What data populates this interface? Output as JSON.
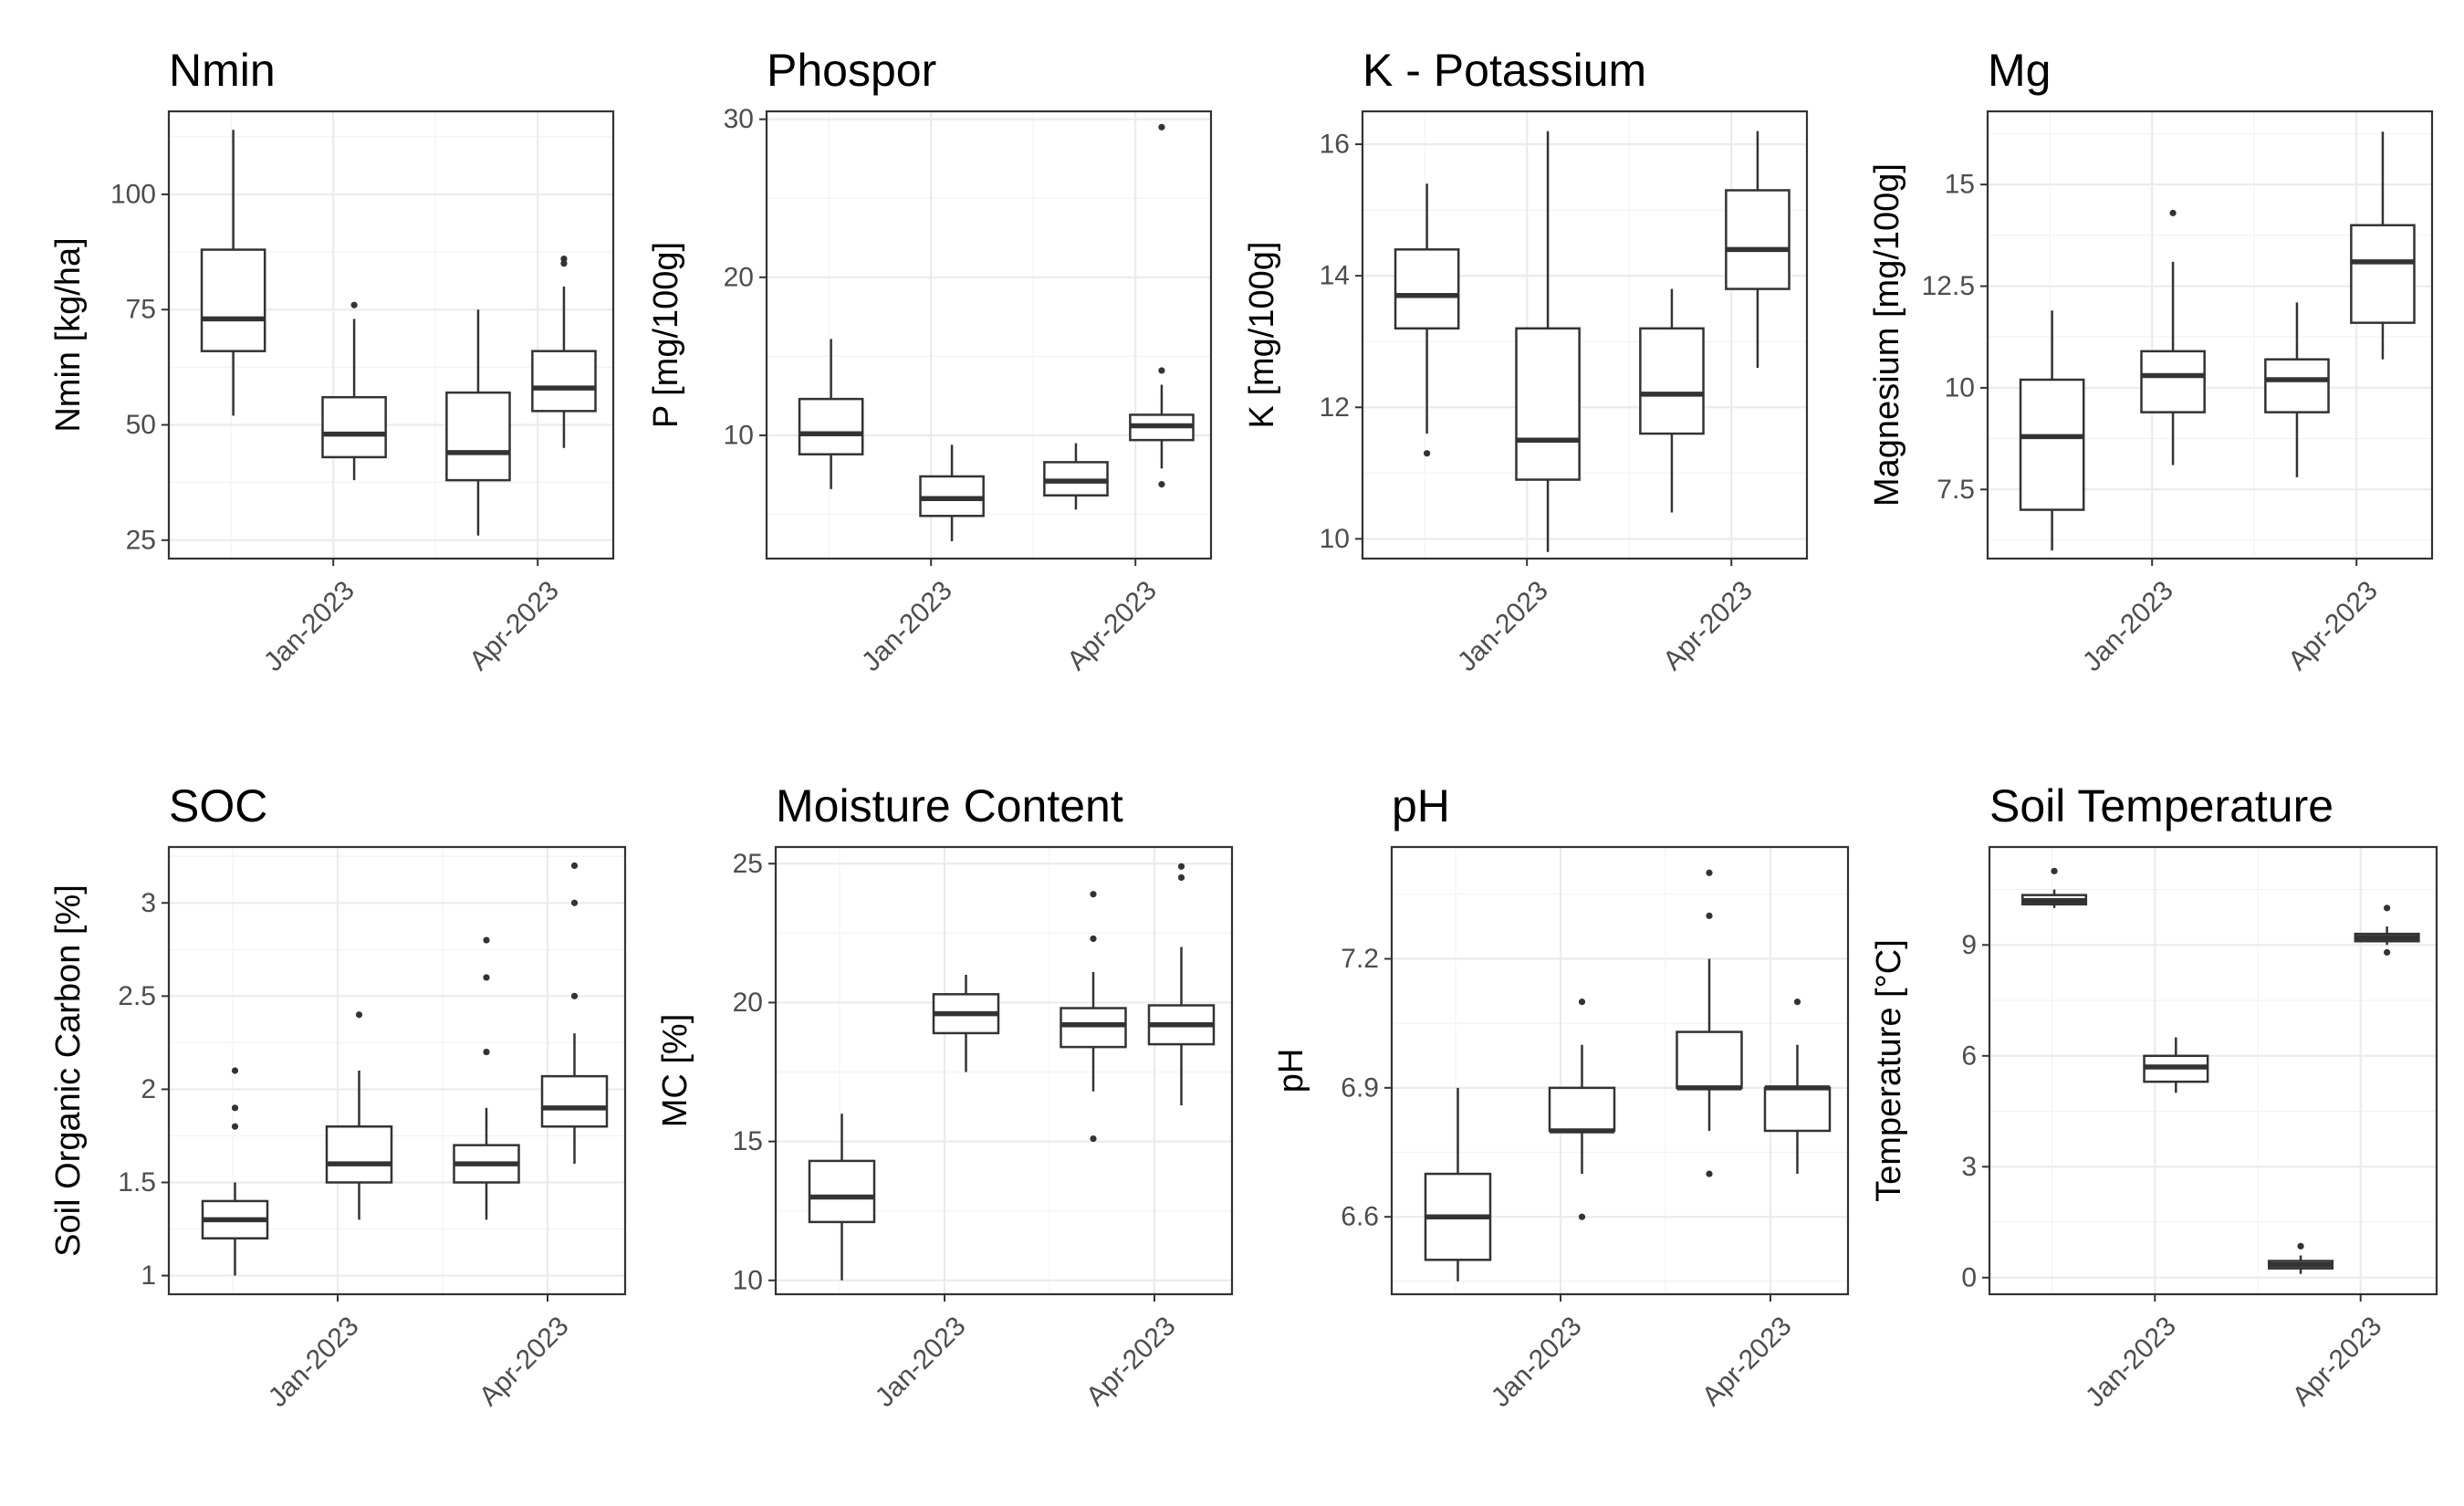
{
  "chart_data": [
    {
      "type": "box",
      "title": "Nmin",
      "ylabel": "Nmin [kg/ha]",
      "ylim": [
        21,
        118
      ],
      "yticks": [
        25,
        50,
        75,
        100
      ],
      "xticks": [
        "Jan-2023",
        "Apr-2023"
      ],
      "boxes": [
        {
          "q1": 66,
          "median": 73,
          "q3": 88,
          "whisker_low": 52,
          "whisker_high": 114,
          "outliers": []
        },
        {
          "q1": 43,
          "median": 48,
          "q3": 56,
          "whisker_low": 38,
          "whisker_high": 73,
          "outliers": [
            76
          ]
        },
        {
          "q1": 38,
          "median": 44,
          "q3": 57,
          "whisker_low": 26,
          "whisker_high": 75,
          "outliers": []
        },
        {
          "q1": 53,
          "median": 58,
          "q3": 66,
          "whisker_low": 45,
          "whisker_high": 80,
          "outliers": [
            85,
            86
          ]
        }
      ]
    },
    {
      "type": "box",
      "title": "Phospor",
      "ylabel": "P [mg/100g]",
      "ylim": [
        2.2,
        30.5
      ],
      "yticks": [
        10,
        20,
        30
      ],
      "xticks": [
        "Jan-2023",
        "Apr-2023"
      ],
      "boxes": [
        {
          "q1": 8.8,
          "median": 10.1,
          "q3": 12.3,
          "whisker_low": 6.6,
          "whisker_high": 16.1,
          "outliers": []
        },
        {
          "q1": 4.9,
          "median": 6.0,
          "q3": 7.4,
          "whisker_low": 3.3,
          "whisker_high": 9.4,
          "outliers": []
        },
        {
          "q1": 6.2,
          "median": 7.1,
          "q3": 8.3,
          "whisker_low": 5.3,
          "whisker_high": 9.5,
          "outliers": []
        },
        {
          "q1": 9.7,
          "median": 10.6,
          "q3": 11.3,
          "whisker_low": 7.9,
          "whisker_high": 13.2,
          "outliers": [
            14.1,
            6.9,
            29.5
          ]
        }
      ]
    },
    {
      "type": "box",
      "title": "K - Potassium",
      "ylabel": "K [mg/100g]",
      "ylim": [
        9.7,
        16.5
      ],
      "yticks": [
        10,
        12,
        14,
        16
      ],
      "xticks": [
        "Jan-2023",
        "Apr-2023"
      ],
      "boxes": [
        {
          "q1": 13.2,
          "median": 13.7,
          "q3": 14.4,
          "whisker_low": 11.6,
          "whisker_high": 15.4,
          "outliers": [
            11.3
          ]
        },
        {
          "q1": 10.9,
          "median": 11.5,
          "q3": 13.2,
          "whisker_low": 9.8,
          "whisker_high": 16.2,
          "outliers": []
        },
        {
          "q1": 11.6,
          "median": 12.2,
          "q3": 13.2,
          "whisker_low": 10.4,
          "whisker_high": 13.8,
          "outliers": []
        },
        {
          "q1": 13.8,
          "median": 14.4,
          "q3": 15.3,
          "whisker_low": 12.6,
          "whisker_high": 16.2,
          "outliers": []
        }
      ]
    },
    {
      "type": "box",
      "title": "Mg",
      "ylabel": "Magnesium [mg/100g]",
      "ylim": [
        5.8,
        16.8
      ],
      "yticks": [
        7.5,
        10.0,
        12.5,
        15.0
      ],
      "xticks": [
        "Jan-2023",
        "Apr-2023"
      ],
      "boxes": [
        {
          "q1": 7.0,
          "median": 8.8,
          "q3": 10.2,
          "whisker_low": 6.0,
          "whisker_high": 11.9,
          "outliers": []
        },
        {
          "q1": 9.4,
          "median": 10.3,
          "q3": 10.9,
          "whisker_low": 8.1,
          "whisker_high": 13.1,
          "outliers": [
            14.3
          ]
        },
        {
          "q1": 9.4,
          "median": 10.2,
          "q3": 10.7,
          "whisker_low": 7.8,
          "whisker_high": 12.1,
          "outliers": []
        },
        {
          "q1": 11.6,
          "median": 13.1,
          "q3": 14.0,
          "whisker_low": 10.7,
          "whisker_high": 16.3,
          "outliers": []
        }
      ]
    },
    {
      "type": "box",
      "title": "SOC",
      "ylabel": "Soil Organic Carbon [%]",
      "ylim": [
        0.9,
        3.3
      ],
      "yticks": [
        1.0,
        1.5,
        2.0,
        2.5,
        3.0
      ],
      "xticks": [
        "Jan-2023",
        "Apr-2023"
      ],
      "boxes": [
        {
          "q1": 1.2,
          "median": 1.3,
          "q3": 1.4,
          "whisker_low": 1.0,
          "whisker_high": 1.5,
          "outliers": [
            1.8,
            1.9,
            2.1
          ]
        },
        {
          "q1": 1.5,
          "median": 1.6,
          "q3": 1.8,
          "whisker_low": 1.3,
          "whisker_high": 2.1,
          "outliers": [
            2.4
          ]
        },
        {
          "q1": 1.5,
          "median": 1.6,
          "q3": 1.7,
          "whisker_low": 1.3,
          "whisker_high": 1.9,
          "outliers": [
            2.2,
            2.6,
            2.8
          ]
        },
        {
          "q1": 1.8,
          "median": 1.9,
          "q3": 2.07,
          "whisker_low": 1.6,
          "whisker_high": 2.3,
          "outliers": [
            2.5,
            3.0,
            3.2
          ]
        }
      ]
    },
    {
      "type": "box",
      "title": "Moisture Content",
      "ylabel": "MC [%]",
      "ylim": [
        9.5,
        25.6
      ],
      "yticks": [
        10,
        15,
        20,
        25
      ],
      "xticks": [
        "Jan-2023",
        "Apr-2023"
      ],
      "boxes": [
        {
          "q1": 12.1,
          "median": 13.0,
          "q3": 14.3,
          "whisker_low": 10.0,
          "whisker_high": 16.0,
          "outliers": []
        },
        {
          "q1": 18.9,
          "median": 19.6,
          "q3": 20.3,
          "whisker_low": 17.5,
          "whisker_high": 21.0,
          "outliers": []
        },
        {
          "q1": 18.4,
          "median": 19.2,
          "q3": 19.8,
          "whisker_low": 16.8,
          "whisker_high": 21.1,
          "outliers": [
            15.1,
            22.3,
            23.9
          ]
        },
        {
          "q1": 18.5,
          "median": 19.2,
          "q3": 19.9,
          "whisker_low": 16.3,
          "whisker_high": 22.0,
          "outliers": [
            24.5,
            24.9
          ]
        }
      ]
    },
    {
      "type": "box",
      "title": "pH",
      "ylabel": "pH",
      "ylim": [
        6.42,
        7.46
      ],
      "yticks": [
        6.6,
        6.9,
        7.2
      ],
      "ytick_labels": [
        "6.6",
        "6.9",
        "7.2"
      ],
      "xticks": [
        "Jan-2023",
        "Apr-2023"
      ],
      "boxes": [
        {
          "q1": 6.5,
          "median": 6.6,
          "q3": 6.7,
          "whisker_low": 6.45,
          "whisker_high": 6.9,
          "outliers": []
        },
        {
          "q1": 6.8,
          "median": 6.8,
          "q3": 6.9,
          "whisker_low": 6.7,
          "whisker_high": 7.0,
          "outliers": [
            6.6,
            7.1
          ]
        },
        {
          "q1": 6.9,
          "median": 6.9,
          "q3": 7.03,
          "whisker_low": 6.8,
          "whisker_high": 7.2,
          "outliers": [
            6.7,
            7.3,
            7.4
          ]
        },
        {
          "q1": 6.8,
          "median": 6.9,
          "q3": 6.9,
          "whisker_low": 6.7,
          "whisker_high": 7.0,
          "outliers": [
            7.1
          ]
        }
      ]
    },
    {
      "type": "box",
      "title": "Soil Temperature",
      "ylabel": "Temperature [°C]",
      "ylim": [
        -0.45,
        11.65
      ],
      "yticks": [
        0,
        3,
        6,
        9
      ],
      "xticks": [
        "Jan-2023",
        "Apr-2023"
      ],
      "boxes": [
        {
          "q1": 10.1,
          "median": 10.2,
          "q3": 10.35,
          "whisker_low": 10.0,
          "whisker_high": 10.5,
          "outliers": [
            11.0
          ]
        },
        {
          "q1": 5.3,
          "median": 5.7,
          "q3": 6.0,
          "whisker_low": 5.0,
          "whisker_high": 6.5,
          "outliers": []
        },
        {
          "q1": 0.25,
          "median": 0.35,
          "q3": 0.45,
          "whisker_low": 0.1,
          "whisker_high": 0.6,
          "outliers": [
            0.85
          ]
        },
        {
          "q1": 9.1,
          "median": 9.2,
          "q3": 9.3,
          "whisker_low": 9.0,
          "whisker_high": 9.5,
          "outliers": [
            8.8,
            10.0
          ]
        }
      ]
    }
  ]
}
